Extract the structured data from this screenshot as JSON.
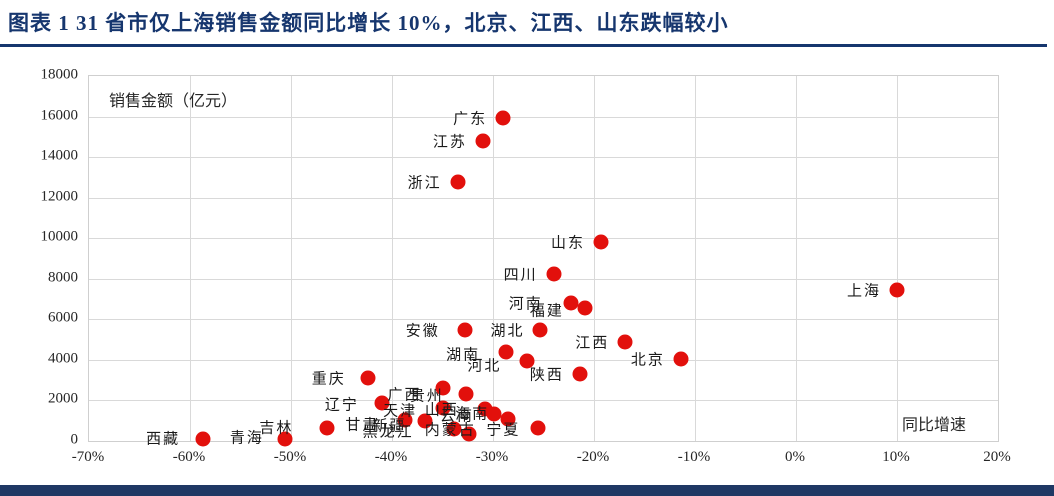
{
  "header": {
    "title": "图表 1  31 省市仅上海销售金额同比增长 10%，北京、江西、山东跌幅较小"
  },
  "colors": {
    "title_navy": "#16366e",
    "footer_navy": "#1f3864",
    "point_red": "#e2100c",
    "grid_gray": "#d9d9d9"
  },
  "chart_data": {
    "type": "scatter",
    "title": "",
    "xlabel": "同比增速",
    "ylabel": "销售金额（亿元）",
    "xlim": [
      -70,
      20
    ],
    "ylim": [
      0,
      18000
    ],
    "grid": true,
    "legend_position": "none",
    "xticks": [
      "-70%",
      "-60%",
      "-50%",
      "-40%",
      "-30%",
      "-20%",
      "-10%",
      "0%",
      "10%",
      "20%"
    ],
    "yticks": [
      "0",
      "2000",
      "4000",
      "6000",
      "8000",
      "10000",
      "12000",
      "14000",
      "16000",
      "18000"
    ],
    "x_unit": "percent_yoy_growth",
    "y_unit": "sales_amount_100m_yuan",
    "points": [
      {
        "name": "广东",
        "x": -29,
        "y": 15950
      },
      {
        "name": "江苏",
        "x": -31,
        "y": 14800
      },
      {
        "name": "浙江",
        "x": -33.5,
        "y": 12750
      },
      {
        "name": "山东",
        "x": -19.3,
        "y": 9800
      },
      {
        "name": "四川",
        "x": -24,
        "y": 8250
      },
      {
        "name": "上海",
        "x": 10,
        "y": 7450
      },
      {
        "name": "河南",
        "x": -22.3,
        "y": 6800,
        "label_offset": [
          -12,
          0
        ]
      },
      {
        "name": "福建",
        "x": -20.9,
        "y": 6550,
        "label_offset": [
          -5,
          2
        ]
      },
      {
        "name": "安徽",
        "x": -32.8,
        "y": 5450,
        "label_offset": [
          -9,
          0
        ]
      },
      {
        "name": "湖北",
        "x": -25.3,
        "y": 5450
      },
      {
        "name": "江西",
        "x": -16.9,
        "y": 4900
      },
      {
        "name": "湖南",
        "x": -28.7,
        "y": 4400,
        "label_offset": [
          -10,
          2
        ]
      },
      {
        "name": "北京",
        "x": -11.4,
        "y": 4050
      },
      {
        "name": "河北",
        "x": -26.6,
        "y": 3950,
        "label_offset": [
          -10,
          4
        ]
      },
      {
        "name": "陕西",
        "x": -21.4,
        "y": 3300
      },
      {
        "name": "重庆",
        "x": -42.4,
        "y": 3100,
        "label_offset": [
          -6,
          0
        ]
      },
      {
        "name": "广西",
        "x": -35,
        "y": 2600,
        "label_offset": [
          -5,
          6
        ]
      },
      {
        "name": "贵州",
        "x": -32.7,
        "y": 2300,
        "label_offset": [
          -6,
          1
        ]
      },
      {
        "name": "辽宁",
        "x": -41,
        "y": 1850,
        "label_offset": [
          -7,
          1
        ]
      },
      {
        "name": "新疆",
        "x": -35,
        "y": 1650,
        "label_offset": [
          -20,
          17
        ]
      },
      {
        "name": "山西",
        "x": -30.8,
        "y": 1600,
        "label_offset": [
          -10,
          0
        ]
      },
      {
        "name": "云南",
        "x": -29.9,
        "y": 1350,
        "label_offset": [
          -4,
          1
        ]
      },
      {
        "name": "海南",
        "x": -28.5,
        "y": 1100,
        "label_offset": [
          -3,
          -6
        ]
      },
      {
        "name": "天津",
        "x": -38.7,
        "y": 1050,
        "label_offset": [
          28,
          -10
        ]
      },
      {
        "name": "甘肃",
        "x": -36.7,
        "y": 1000,
        "label_offset": [
          -30,
          3
        ]
      },
      {
        "name": "吉林",
        "x": -46.4,
        "y": 650,
        "label_offset": [
          -18,
          -1
        ]
      },
      {
        "name": "宁夏",
        "x": -25.5,
        "y": 650,
        "label_offset": [
          -2,
          1
        ]
      },
      {
        "name": "黑龙江",
        "x": -33.9,
        "y": 600,
        "label_offset": [
          -24,
          2
        ]
      },
      {
        "name": "内蒙古",
        "x": -32.4,
        "y": 350,
        "label_offset": [
          23,
          -5
        ]
      },
      {
        "name": "青海",
        "x": -50.6,
        "y": 100,
        "label_offset": [
          -5,
          -2
        ]
      },
      {
        "name": "西藏",
        "x": -58.7,
        "y": 80,
        "label_offset": [
          -7,
          -1
        ]
      }
    ]
  }
}
